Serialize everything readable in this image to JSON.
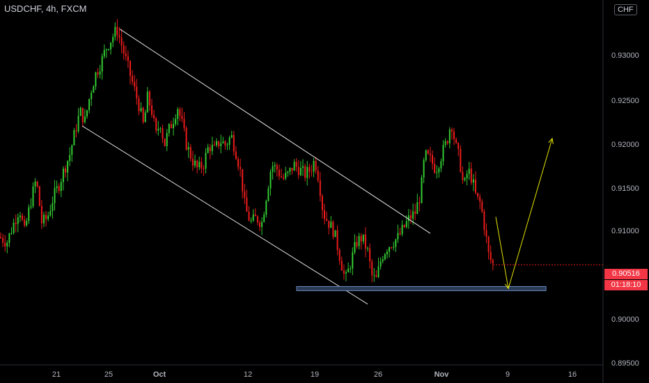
{
  "header": {
    "title": "USDCHF, 4h, FXCM",
    "currency_badge": "CHF"
  },
  "price_label": {
    "value": "0.90516",
    "countdown": "01:18:10"
  },
  "colors": {
    "up": "#26a69a",
    "up_candle": "#33cc33",
    "down": "#ee1c1c",
    "background": "#000000",
    "channel": "#e6e6e6",
    "projection": "#e6e600",
    "support_fill": "#2a3a55",
    "support_border": "#6a8bbf",
    "label_bg": "#f23645"
  },
  "chart_data": {
    "type": "candlestick",
    "symbol": "USDCHF",
    "timeframe": "4h",
    "source": "FXCM",
    "ylim": [
      0.895,
      0.9325
    ],
    "y_ticks": [
      "0.93000",
      "0.92500",
      "0.92000",
      "0.91500",
      "0.91000",
      "0.90000",
      "0.89500"
    ],
    "x_ticks": [
      "21",
      "25",
      "Oct",
      "12",
      "19",
      "26",
      "Nov",
      "9",
      "16"
    ],
    "last_price": 0.90516,
    "support_level": 0.9027,
    "path_points": [
      [
        0,
        0.908
      ],
      [
        10,
        0.9075
      ],
      [
        20,
        0.9095
      ],
      [
        28,
        0.911
      ],
      [
        35,
        0.9085
      ],
      [
        45,
        0.912
      ],
      [
        52,
        0.914
      ],
      [
        60,
        0.9095
      ],
      [
        68,
        0.91
      ],
      [
        76,
        0.912
      ],
      [
        85,
        0.9135
      ],
      [
        92,
        0.915
      ],
      [
        100,
        0.9165
      ],
      [
        108,
        0.919
      ],
      [
        115,
        0.921
      ],
      [
        122,
        0.92
      ],
      [
        130,
        0.923
      ],
      [
        138,
        0.925
      ],
      [
        145,
        0.926
      ],
      [
        152,
        0.9275
      ],
      [
        160,
        0.9285
      ],
      [
        168,
        0.9295
      ],
      [
        174,
        0.928
      ],
      [
        180,
        0.9265
      ],
      [
        186,
        0.925
      ],
      [
        194,
        0.923
      ],
      [
        200,
        0.9215
      ],
      [
        206,
        0.9195
      ],
      [
        212,
        0.9225
      ],
      [
        218,
        0.921
      ],
      [
        224,
        0.9185
      ],
      [
        230,
        0.92
      ],
      [
        236,
        0.9175
      ],
      [
        242,
        0.919
      ],
      [
        248,
        0.92
      ],
      [
        255,
        0.9215
      ],
      [
        262,
        0.9195
      ],
      [
        268,
        0.9175
      ],
      [
        276,
        0.916
      ],
      [
        284,
        0.915
      ],
      [
        292,
        0.9155
      ],
      [
        300,
        0.9175
      ],
      [
        308,
        0.917
      ],
      [
        316,
        0.918
      ],
      [
        324,
        0.9175
      ],
      [
        332,
        0.9185
      ],
      [
        340,
        0.9165
      ],
      [
        346,
        0.9145
      ],
      [
        352,
        0.911
      ],
      [
        360,
        0.9095
      ],
      [
        368,
        0.91
      ],
      [
        376,
        0.9095
      ],
      [
        384,
        0.913
      ],
      [
        390,
        0.9155
      ],
      [
        398,
        0.915
      ],
      [
        406,
        0.914
      ],
      [
        414,
        0.9145
      ],
      [
        422,
        0.9155
      ],
      [
        430,
        0.915
      ],
      [
        438,
        0.9145
      ],
      [
        446,
        0.915
      ],
      [
        452,
        0.916
      ],
      [
        458,
        0.914
      ],
      [
        464,
        0.9105
      ],
      [
        472,
        0.9095
      ],
      [
        480,
        0.9085
      ],
      [
        488,
        0.906
      ],
      [
        496,
        0.9035
      ],
      [
        504,
        0.9055
      ],
      [
        512,
        0.9075
      ],
      [
        520,
        0.908
      ],
      [
        528,
        0.9065
      ],
      [
        534,
        0.904
      ],
      [
        540,
        0.9035
      ],
      [
        548,
        0.906
      ],
      [
        556,
        0.907
      ],
      [
        564,
        0.9075
      ],
      [
        572,
        0.908
      ],
      [
        580,
        0.909
      ],
      [
        588,
        0.91
      ],
      [
        596,
        0.9105
      ],
      [
        604,
        0.9125
      ],
      [
        610,
        0.9165
      ],
      [
        618,
        0.916
      ],
      [
        626,
        0.915
      ],
      [
        634,
        0.9165
      ],
      [
        642,
        0.918
      ],
      [
        648,
        0.92
      ],
      [
        654,
        0.9175
      ],
      [
        660,
        0.916
      ],
      [
        666,
        0.913
      ],
      [
        672,
        0.915
      ],
      [
        678,
        0.914
      ],
      [
        684,
        0.912
      ],
      [
        690,
        0.9115
      ],
      [
        696,
        0.909
      ],
      [
        702,
        0.906
      ],
      [
        708,
        0.9052
      ]
    ],
    "channel_upper": [
      [
        172,
        0.9295
      ],
      [
        618,
        0.9084
      ]
    ],
    "channel_lower": [
      [
        118,
        0.9195
      ],
      [
        528,
        0.9011
      ]
    ],
    "support_zone": {
      "x_start": 426,
      "x_end": 784
    },
    "projection": [
      [
        712,
        0.9101
      ],
      [
        730,
        0.9027
      ],
      [
        793,
        0.9182
      ]
    ]
  }
}
